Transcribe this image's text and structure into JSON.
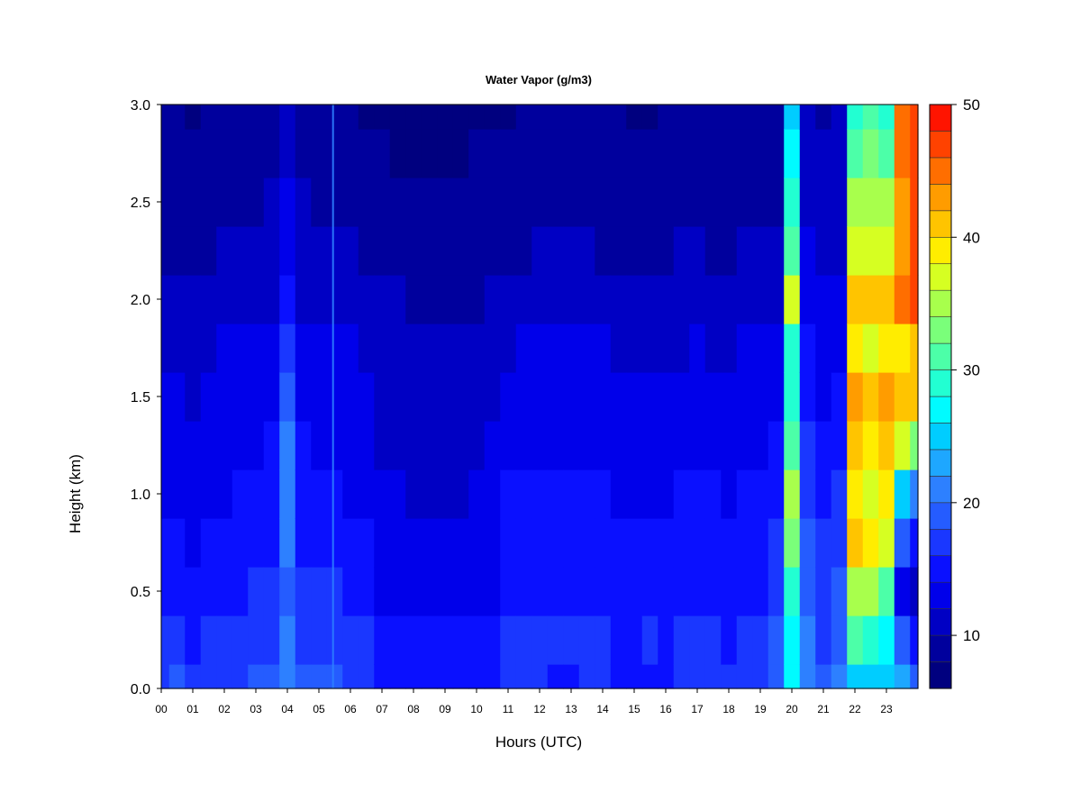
{
  "chart_data": {
    "type": "heatmap",
    "title": "Water Vapor (g/m3)",
    "xlabel": "Hours (UTC)",
    "ylabel": "Height (km)",
    "xlim": [
      0,
      24
    ],
    "ylim": [
      0,
      3.0
    ],
    "x_ticks": [
      "00",
      "01",
      "02",
      "03",
      "04",
      "05",
      "06",
      "07",
      "08",
      "09",
      "10",
      "11",
      "12",
      "13",
      "14",
      "15",
      "16",
      "17",
      "18",
      "19",
      "20",
      "21",
      "22",
      "23"
    ],
    "y_ticks": [
      "0.0",
      "0.5",
      "1.0",
      "1.5",
      "2.0",
      "2.5",
      "3.0"
    ],
    "colorbar": {
      "min": 6,
      "max": 50,
      "step": 2,
      "tick_values": [
        10,
        20,
        30,
        40,
        50
      ],
      "tick_labels": [
        "10",
        "20",
        "30",
        "40",
        "50"
      ],
      "colors": [
        "#00007f",
        "#00009d",
        "#0000c4",
        "#0000ea",
        "#0a10ff",
        "#1a37ff",
        "#255cff",
        "#2d80ff",
        "#1ea7ff",
        "#00cdff",
        "#00fbff",
        "#22ffd2",
        "#4cffa8",
        "#7aff7a",
        "#a8ff4c",
        "#d6ff22",
        "#ffed00",
        "#ffc400",
        "#ff9c00",
        "#ff6e00",
        "#ff4200",
        "#ff1400",
        "#e80000",
        "#c10000",
        "#9a0000",
        "#720000"
      ]
    },
    "height_levels_km": [
      0.0,
      0.25,
      0.5,
      0.75,
      1.0,
      1.25,
      1.5,
      1.75,
      2.0,
      2.25,
      2.5,
      2.75,
      3.0
    ],
    "time_series": [
      {
        "hour": 0.0,
        "values": [
          17,
          16,
          15,
          14,
          13,
          12.5,
          12,
          11.5,
          10,
          9,
          8.5,
          8,
          8
        ]
      },
      {
        "hour": 0.5,
        "values": [
          18,
          16,
          15,
          14,
          13,
          12.5,
          12,
          11.5,
          10,
          9,
          8.5,
          8,
          8
        ]
      },
      {
        "hour": 1.0,
        "values": [
          16,
          15,
          14,
          13.5,
          13,
          12,
          11.5,
          11,
          10,
          9,
          8.5,
          8,
          7.5
        ]
      },
      {
        "hour": 1.5,
        "values": [
          17,
          16,
          15,
          14,
          13,
          12.5,
          12,
          11.5,
          10.5,
          9.5,
          9,
          8.5,
          8
        ]
      },
      {
        "hour": 2.0,
        "values": [
          17,
          16,
          15.5,
          14.5,
          13.5,
          13,
          12.5,
          12,
          11,
          10,
          9.5,
          9,
          8.5
        ]
      },
      {
        "hour": 2.5,
        "values": [
          17,
          16.5,
          15.5,
          14.5,
          14,
          13,
          12.5,
          12,
          11,
          10,
          9.5,
          9,
          8.5
        ]
      },
      {
        "hour": 3.0,
        "values": [
          18,
          17,
          16,
          15,
          14,
          13.5,
          13,
          12,
          11,
          10,
          9.5,
          9,
          8.5
        ]
      },
      {
        "hour": 3.5,
        "values": [
          18,
          17,
          16,
          15.5,
          14.5,
          14,
          13,
          12.5,
          11.5,
          10.5,
          10,
          9.5,
          9
        ]
      },
      {
        "hour": 4.0,
        "values": [
          20,
          20,
          19,
          21,
          21,
          20,
          19,
          17,
          15,
          13,
          12,
          11,
          10
        ]
      },
      {
        "hour": 4.5,
        "values": [
          18,
          17,
          16,
          15,
          14.5,
          14,
          13,
          12.5,
          11.5,
          10.5,
          10,
          9.5,
          9
        ]
      },
      {
        "hour": 5.0,
        "values": [
          18,
          17,
          16,
          15,
          14,
          13.5,
          13,
          12,
          11,
          10,
          9.5,
          9,
          8.5
        ]
      },
      {
        "hour": 5.5,
        "values": [
          18,
          17,
          16,
          15,
          14,
          13.5,
          13,
          12,
          11,
          10,
          9.5,
          9,
          8.5
        ]
      },
      {
        "hour": 6.0,
        "values": [
          17,
          16,
          15,
          14,
          13.5,
          13,
          12.5,
          12,
          11,
          10,
          9.5,
          9,
          8.5
        ]
      },
      {
        "hour": 6.5,
        "values": [
          17,
          16.5,
          15.5,
          14,
          13,
          12.5,
          12,
          11,
          10,
          9,
          8.5,
          8,
          7.5
        ]
      },
      {
        "hour": 7.0,
        "values": [
          15,
          14,
          13,
          12.5,
          12,
          11.5,
          11,
          10.5,
          10,
          9,
          8.5,
          8,
          7.5
        ]
      },
      {
        "hour": 7.5,
        "values": [
          15,
          14,
          13,
          12.5,
          12,
          11.5,
          11,
          10.5,
          10,
          9,
          8,
          7.5,
          7
        ]
      },
      {
        "hour": 8.0,
        "values": [
          15,
          14,
          12.5,
          12,
          11.5,
          11,
          10.5,
          10,
          9.5,
          8.5,
          8,
          7.5,
          7
        ]
      },
      {
        "hour": 8.5,
        "values": [
          15,
          14,
          12.5,
          12,
          11.5,
          11,
          10.5,
          10,
          9.5,
          8.5,
          8,
          7.5,
          7
        ]
      },
      {
        "hour": 9.0,
        "values": [
          15,
          14,
          12.5,
          12,
          11.5,
          11,
          10.5,
          10,
          9.5,
          8.5,
          8,
          7.5,
          7
        ]
      },
      {
        "hour": 9.5,
        "values": [
          15,
          14,
          13,
          12,
          11.5,
          11,
          10.5,
          10,
          9.5,
          8.5,
          8,
          7.5,
          7
        ]
      },
      {
        "hour": 10.0,
        "values": [
          15,
          14,
          13,
          12.5,
          12,
          11.5,
          11,
          10.5,
          9.5,
          9,
          8.5,
          8,
          7.5
        ]
      },
      {
        "hour": 10.5,
        "values": [
          15.5,
          14.5,
          13.5,
          13,
          12.5,
          12,
          11.5,
          11,
          10,
          9,
          8.5,
          8,
          7.5
        ]
      },
      {
        "hour": 11.0,
        "values": [
          16,
          16,
          15,
          14.5,
          14,
          13,
          12.5,
          11.5,
          10,
          9,
          8.5,
          8,
          7.5
        ]
      },
      {
        "hour": 11.5,
        "values": [
          16,
          16,
          15,
          14.5,
          14,
          13.5,
          13,
          12,
          10.5,
          9.5,
          9,
          8.5,
          8
        ]
      },
      {
        "hour": 12.0,
        "values": [
          16,
          16,
          15,
          14.5,
          14,
          13.5,
          13,
          12.5,
          11,
          10,
          9,
          8.5,
          8
        ]
      },
      {
        "hour": 12.5,
        "values": [
          15,
          16,
          15,
          14.5,
          14,
          13.5,
          13,
          12.5,
          11,
          10,
          9.5,
          9,
          8.5
        ]
      },
      {
        "hour": 13.0,
        "values": [
          14,
          16,
          15,
          14.5,
          14,
          13.5,
          13,
          12.5,
          11,
          10,
          9.5,
          9,
          8.5
        ]
      },
      {
        "hour": 13.5,
        "values": [
          16,
          16,
          15,
          14.5,
          14,
          13.5,
          13,
          12.5,
          11,
          10,
          9.5,
          9,
          8.5
        ]
      },
      {
        "hour": 14.0,
        "values": [
          16,
          16,
          15,
          14.5,
          14,
          13.5,
          13,
          12,
          10.5,
          9.5,
          9,
          8.5,
          8
        ]
      },
      {
        "hour": 14.5,
        "values": [
          15,
          15,
          14.5,
          14,
          13,
          12.5,
          12,
          11,
          10,
          9.5,
          9,
          8.5,
          8
        ]
      },
      {
        "hour": 15.0,
        "values": [
          15,
          15,
          14.5,
          14,
          13,
          12.5,
          12,
          11,
          10,
          9.5,
          9,
          8,
          7.5
        ]
      },
      {
        "hour": 15.5,
        "values": [
          15,
          16,
          14.5,
          14,
          13,
          12.5,
          12,
          11,
          10,
          9.5,
          9,
          8,
          7.5
        ]
      },
      {
        "hour": 16.0,
        "values": [
          15,
          15,
          14.5,
          14,
          13,
          12.5,
          12,
          11,
          10,
          9.5,
          9,
          8.5,
          8
        ]
      },
      {
        "hour": 16.5,
        "values": [
          16,
          16,
          15,
          14.5,
          14,
          13,
          12.5,
          11.5,
          10.5,
          10,
          9,
          8.5,
          8
        ]
      },
      {
        "hour": 17.0,
        "values": [
          16,
          16,
          15,
          14.5,
          14,
          13.5,
          13,
          12,
          11,
          10,
          9.5,
          9,
          8.5
        ]
      },
      {
        "hour": 17.5,
        "values": [
          16,
          16,
          15,
          14.5,
          14,
          13,
          12.5,
          11.5,
          10.5,
          9.5,
          9,
          8.5,
          8
        ]
      },
      {
        "hour": 18.0,
        "values": [
          16,
          15.5,
          15,
          14,
          13.5,
          13,
          12,
          11.5,
          10.5,
          9.5,
          9,
          8.5,
          8
        ]
      },
      {
        "hour": 18.5,
        "values": [
          16,
          16,
          15,
          14.5,
          14,
          13.5,
          13,
          12,
          11,
          10,
          9.5,
          9,
          8.5
        ]
      },
      {
        "hour": 19.0,
        "values": [
          17,
          16,
          15.5,
          14.5,
          14,
          13.5,
          13,
          12,
          11,
          10,
          9.5,
          9,
          8.5
        ]
      },
      {
        "hour": 19.5,
        "values": [
          19,
          18,
          17,
          16,
          15,
          14,
          13,
          12,
          11,
          10,
          9.5,
          9,
          8.5
        ]
      },
      {
        "hour": 20.0,
        "values": [
          26,
          27,
          28,
          32,
          34,
          30,
          28,
          29,
          36,
          30,
          28,
          26,
          24
        ]
      },
      {
        "hour": 20.5,
        "values": [
          21,
          20,
          19,
          18,
          17,
          16,
          15,
          14,
          13,
          12,
          11.5,
          11,
          10.5
        ]
      },
      {
        "hour": 21.0,
        "values": [
          18,
          17.5,
          17,
          16,
          15,
          14,
          13.5,
          13,
          12,
          11,
          10.5,
          10,
          9.5
        ]
      },
      {
        "hour": 21.5,
        "values": [
          20,
          19,
          18,
          17,
          16,
          15,
          14,
          13,
          12,
          11.5,
          11,
          10.5,
          10
        ]
      },
      {
        "hour": 22.0,
        "values": [
          25,
          30,
          35,
          40,
          38,
          40,
          42,
          38,
          40,
          36,
          34,
          30,
          28
        ]
      },
      {
        "hour": 22.5,
        "values": [
          24,
          28,
          34,
          38,
          36,
          38,
          40,
          36,
          40,
          36,
          34,
          32,
          30
        ]
      },
      {
        "hour": 23.0,
        "values": [
          24,
          26,
          30,
          36,
          38,
          40,
          42,
          38,
          40,
          36,
          34,
          30,
          28
        ]
      },
      {
        "hour": 23.5,
        "values": [
          22,
          18,
          12,
          18,
          24,
          36,
          40,
          38,
          44,
          42,
          42,
          44,
          44
        ]
      },
      {
        "hour": 24.0,
        "values": [
          18,
          14,
          11,
          14,
          20,
          32,
          40,
          40,
          46,
          46,
          46,
          46,
          46
        ]
      }
    ]
  }
}
